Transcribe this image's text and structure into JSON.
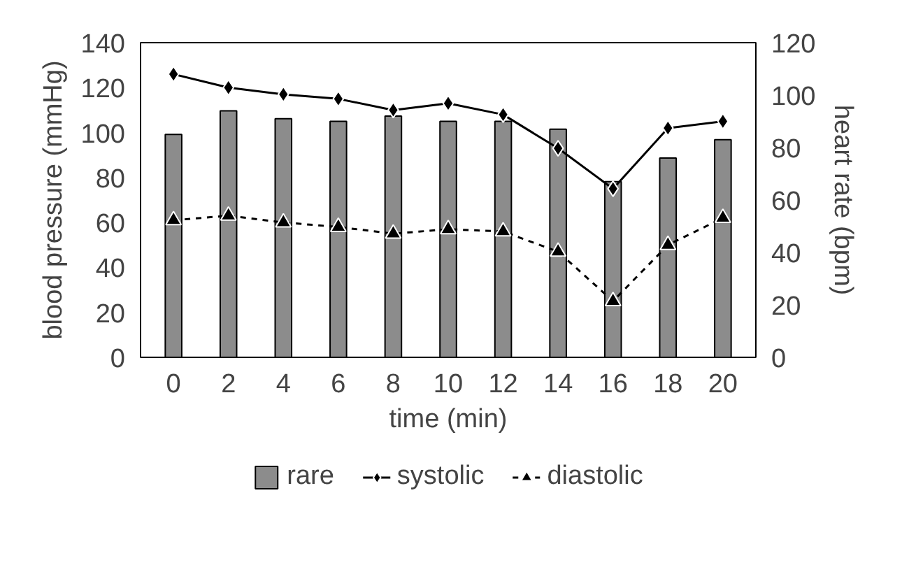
{
  "chart_data": {
    "type": "bar",
    "xlabel": "time (min)",
    "ylabel": "blood pressure (mmHg)",
    "y2label": "heart rate (bpm)",
    "categories": [
      "0",
      "2",
      "4",
      "6",
      "8",
      "10",
      "12",
      "14",
      "16",
      "18",
      "20"
    ],
    "ylim": [
      0,
      140
    ],
    "yticks": [
      0,
      20,
      40,
      60,
      80,
      100,
      120,
      140
    ],
    "y2lim": [
      0,
      120
    ],
    "y2ticks": [
      0,
      20,
      40,
      60,
      80,
      100,
      120
    ],
    "grid": false,
    "legend": "bottom",
    "series": [
      {
        "name": "rare",
        "axis": "y2",
        "color": "#8c8c8c",
        "values": [
          85,
          94,
          91,
          90,
          92,
          90,
          90,
          87,
          67,
          76,
          83
        ]
      },
      {
        "name": "systolic",
        "type": "line",
        "color": "#000000",
        "marker": "diamond",
        "line_style": "solid",
        "values": [
          126,
          120,
          117,
          115,
          110,
          113,
          108,
          93,
          75,
          102,
          105
        ]
      },
      {
        "name": "diastolic",
        "type": "line",
        "color": "#000000",
        "marker": "triangle",
        "line_style": "dashed",
        "values": [
          61,
          63,
          60,
          58,
          55,
          57,
          56,
          47,
          25,
          50,
          62
        ]
      }
    ]
  }
}
